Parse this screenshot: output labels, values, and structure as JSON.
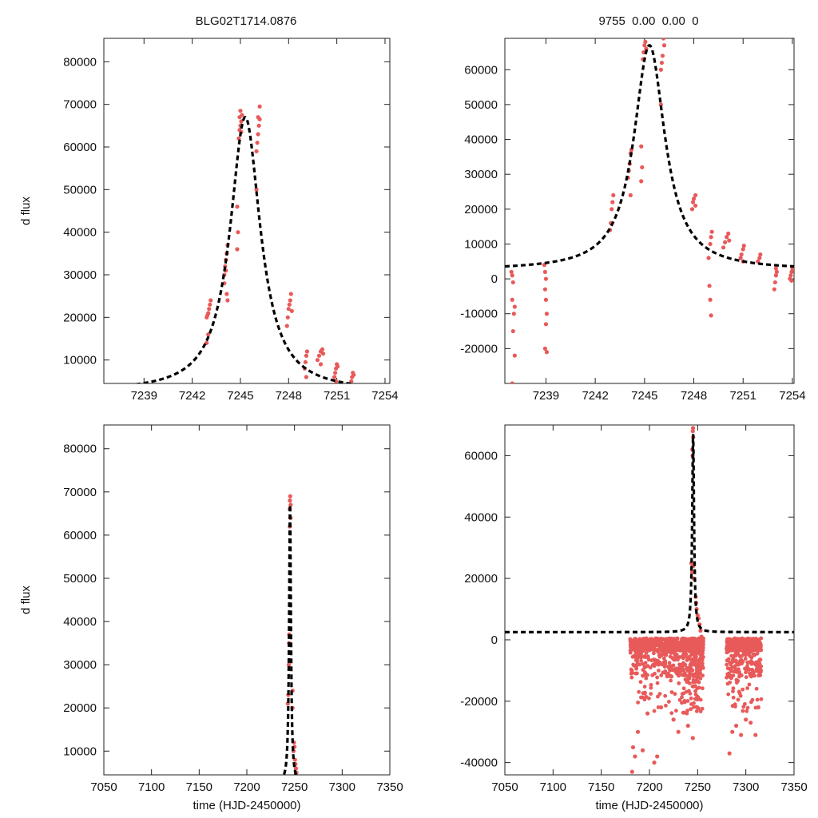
{
  "header": {
    "left_title": "BLG02T1714.0876",
    "right_title": "9755  0.00  0.00  0"
  },
  "chart_data": [
    {
      "type": "scatter",
      "panel": "top-left",
      "title": "",
      "xlabel": "",
      "ylabel": "d flux",
      "xlim": [
        7236.5,
        7254.3
      ],
      "ylim": [
        4500,
        85500
      ],
      "x_ticks": [
        7239,
        7242,
        7245,
        7248,
        7251,
        7254
      ],
      "y_ticks": [
        10000,
        20000,
        30000,
        40000,
        50000,
        60000,
        70000,
        80000
      ],
      "model": {
        "t0": 7245.3,
        "peak": 67000,
        "base": 2500,
        "width": 1.15
      },
      "series": [
        {
          "color": "#e85a5a",
          "points": [
            [
              7242.9,
              20000
            ],
            [
              7243.0,
              21000
            ],
            [
              7243.05,
              22000
            ],
            [
              7243.1,
              23000
            ],
            [
              7243.15,
              24000
            ],
            [
              7242.95,
              20500
            ],
            [
              7243.0,
              16000
            ],
            [
              7242.9,
              14000
            ],
            [
              7244.0,
              30000
            ],
            [
              7244.05,
              32000
            ],
            [
              7244.1,
              33500
            ],
            [
              7244.15,
              35000
            ],
            [
              7244.2,
              37000
            ],
            [
              7244.1,
              31000
            ],
            [
              7244.0,
              28000
            ],
            [
              7244.2,
              24000
            ],
            [
              7244.15,
              25500
            ],
            [
              7244.8,
              36000
            ],
            [
              7244.85,
              40000
            ],
            [
              7244.8,
              46000
            ],
            [
              7244.9,
              62000
            ],
            [
              7244.95,
              64000
            ],
            [
              7245.0,
              65000
            ],
            [
              7245.05,
              66000
            ],
            [
              7245.1,
              67500
            ],
            [
              7245.0,
              68500
            ],
            [
              7244.95,
              67000
            ],
            [
              7245.05,
              63500
            ],
            [
              7246.0,
              50000
            ],
            [
              7246.0,
              59000
            ],
            [
              7246.05,
              61000
            ],
            [
              7246.1,
              63000
            ],
            [
              7246.15,
              65000
            ],
            [
              7246.2,
              66500
            ],
            [
              7246.2,
              69500
            ],
            [
              7246.1,
              67000
            ],
            [
              7247.9,
              18000
            ],
            [
              7247.95,
              20000
            ],
            [
              7248.0,
              22000
            ],
            [
              7248.05,
              23000
            ],
            [
              7248.1,
              24000
            ],
            [
              7248.15,
              25500
            ],
            [
              7248.2,
              21500
            ],
            [
              7249.0,
              8000
            ],
            [
              7249.05,
              9500
            ],
            [
              7249.1,
              11000
            ],
            [
              7249.15,
              12000
            ],
            [
              7249.1,
              6000
            ],
            [
              7249.8,
              10000
            ],
            [
              7249.9,
              11000
            ],
            [
              7250.0,
              12000
            ],
            [
              7250.1,
              12500
            ],
            [
              7250.15,
              11500
            ],
            [
              7250.0,
              9000
            ],
            [
              7250.85,
              6000
            ],
            [
              7250.9,
              7000
            ],
            [
              7250.95,
              8000
            ],
            [
              7251.0,
              9000
            ],
            [
              7251.05,
              8500
            ],
            [
              7250.95,
              5000
            ],
            [
              7251.9,
              5000
            ],
            [
              7251.95,
              6000
            ],
            [
              7252.0,
              7000
            ],
            [
              7252.05,
              6500
            ]
          ]
        }
      ]
    },
    {
      "type": "scatter",
      "panel": "top-right",
      "title": "",
      "xlabel": "",
      "ylabel": "",
      "xlim": [
        7236.5,
        7254.1
      ],
      "ylim": [
        -30000,
        69000
      ],
      "x_ticks": [
        7239,
        7242,
        7245,
        7248,
        7251,
        7254
      ],
      "y_ticks": [
        -20000,
        -10000,
        0,
        10000,
        20000,
        30000,
        40000,
        50000,
        60000
      ],
      "model": {
        "t0": 7245.3,
        "peak": 67000,
        "base": 2500,
        "width": 1.15
      },
      "series": [
        {
          "color": "#e85a5a",
          "points": [
            [
              7236.9,
              2000
            ],
            [
              7236.95,
              1000
            ],
            [
              7237.0,
              -1000
            ],
            [
              7236.95,
              -6000
            ],
            [
              7237.05,
              -10000
            ],
            [
              7237.0,
              -15000
            ],
            [
              7237.1,
              -22000
            ],
            [
              7236.95,
              -30000
            ],
            [
              7237.1,
              -8000
            ],
            [
              7238.9,
              4000
            ],
            [
              7238.95,
              2000
            ],
            [
              7239.0,
              0
            ],
            [
              7238.95,
              -3000
            ],
            [
              7239.0,
              -6000
            ],
            [
              7239.05,
              -10000
            ],
            [
              7239.0,
              -13000
            ],
            [
              7238.95,
              -20000
            ],
            [
              7239.05,
              -21000
            ],
            [
              7242.9,
              14000
            ],
            [
              7242.95,
              16000
            ],
            [
              7243.0,
              20000
            ],
            [
              7243.05,
              22000
            ],
            [
              7243.1,
              24000
            ],
            [
              7244.0,
              29000
            ],
            [
              7244.05,
              31000
            ],
            [
              7244.1,
              33000
            ],
            [
              7244.15,
              36000
            ],
            [
              7244.2,
              37000
            ],
            [
              7244.15,
              24000
            ],
            [
              7244.8,
              28000
            ],
            [
              7244.85,
              32000
            ],
            [
              7244.8,
              38000
            ],
            [
              7244.9,
              63000
            ],
            [
              7244.95,
              65000
            ],
            [
              7245.0,
              67000
            ],
            [
              7245.05,
              68000
            ],
            [
              7245.1,
              66000
            ],
            [
              7246.0,
              50000
            ],
            [
              7246.0,
              60000
            ],
            [
              7246.05,
              62000
            ],
            [
              7246.1,
              64000
            ],
            [
              7246.2,
              67000
            ],
            [
              7246.15,
              69000
            ],
            [
              7247.9,
              20000
            ],
            [
              7247.95,
              22000
            ],
            [
              7248.0,
              23000
            ],
            [
              7248.1,
              24000
            ],
            [
              7248.1,
              21000
            ],
            [
              7248.9,
              6000
            ],
            [
              7248.95,
              -2000
            ],
            [
              7249.0,
              -6000
            ],
            [
              7249.05,
              -10500
            ],
            [
              7249.0,
              10000
            ],
            [
              7249.05,
              12000
            ],
            [
              7249.1,
              13500
            ],
            [
              7249.8,
              9000
            ],
            [
              7249.9,
              10500
            ],
            [
              7250.0,
              12000
            ],
            [
              7250.1,
              13000
            ],
            [
              7250.15,
              11000
            ],
            [
              7250.85,
              6000
            ],
            [
              7250.9,
              7000
            ],
            [
              7251.0,
              8500
            ],
            [
              7251.05,
              9500
            ],
            [
              7251.0,
              5000
            ],
            [
              7251.9,
              5000
            ],
            [
              7252.0,
              6000
            ],
            [
              7252.05,
              7000
            ],
            [
              7252.9,
              -3000
            ],
            [
              7252.95,
              -1000
            ],
            [
              7253.0,
              1000
            ],
            [
              7253.05,
              2000
            ],
            [
              7253.0,
              3000
            ],
            [
              7253.85,
              0
            ],
            [
              7253.9,
              1000
            ],
            [
              7253.95,
              2000
            ],
            [
              7254.0,
              3000
            ],
            [
              7253.95,
              -500
            ]
          ]
        }
      ]
    },
    {
      "type": "scatter",
      "panel": "bottom-left",
      "title": "",
      "xlabel": "time (HJD-2450000)",
      "ylabel": "d flux",
      "xlim": [
        7050,
        7350
      ],
      "ylim": [
        4500,
        85500
      ],
      "x_ticks": [
        7050,
        7100,
        7150,
        7200,
        7250,
        7300,
        7350
      ],
      "y_ticks": [
        10000,
        20000,
        30000,
        40000,
        50000,
        60000,
        70000,
        80000
      ],
      "model": {
        "t0": 7245.3,
        "peak": 67000,
        "base": 2500,
        "width": 1.15
      },
      "series": [
        {
          "color": "#e85a5a",
          "points": [
            [
              7243,
              21000
            ],
            [
              7243.5,
              23000
            ],
            [
              7244,
              30000
            ],
            [
              7244.3,
              35000
            ],
            [
              7244.5,
              37000
            ],
            [
              7245,
              62000
            ],
            [
              7245,
              66000
            ],
            [
              7245.2,
              68000
            ],
            [
              7245.5,
              69000
            ],
            [
              7246,
              64000
            ],
            [
              7246,
              67000
            ],
            [
              7248,
              20000
            ],
            [
              7248,
              24000
            ],
            [
              7249,
              10000
            ],
            [
              7249.5,
              12000
            ],
            [
              7250,
              11000
            ],
            [
              7250.5,
              8000
            ],
            [
              7251,
              7000
            ],
            [
              7251.5,
              6000
            ],
            [
              7252,
              5000
            ]
          ]
        }
      ]
    },
    {
      "type": "scatter",
      "panel": "bottom-right",
      "title": "",
      "xlabel": "time (HJD-2450000)",
      "ylabel": "",
      "xlim": [
        7050,
        7350
      ],
      "ylim": [
        -44000,
        70000
      ],
      "x_ticks": [
        7050,
        7100,
        7150,
        7200,
        7250,
        7300,
        7350
      ],
      "y_ticks": [
        -40000,
        -20000,
        0,
        20000,
        40000,
        60000
      ],
      "model": {
        "t0": 7245.3,
        "peak": 67000,
        "base": 2500,
        "width": 1.15
      },
      "noise_bands": [
        [
          7180,
          7232
        ],
        [
          7233,
          7256
        ],
        [
          7280,
          7316
        ]
      ],
      "series": [
        {
          "color": "#e85a5a",
          "points": [
            [
              7245,
              68000
            ],
            [
              7245.2,
              69000
            ],
            [
              7245.4,
              66000
            ],
            [
              7244.5,
              62000
            ],
            [
              7244.8,
              60000
            ],
            [
              7245.1,
              24000
            ],
            [
              7244.4,
              22000
            ],
            [
              7245.6,
              20000
            ],
            [
              7243.5,
              25000
            ],
            [
              7248,
              14000
            ],
            [
              7248.5,
              12000
            ],
            [
              7249,
              10000
            ],
            [
              7250,
              8000
            ],
            [
              7251,
              7000
            ],
            [
              7252,
              5000
            ],
            [
              7253,
              3000
            ],
            [
              7254,
              1000
            ],
            [
              7255,
              -1000
            ],
            [
              7182,
              -43000
            ],
            [
              7183,
              -35000
            ],
            [
              7185,
              -38000
            ],
            [
              7188,
              -30000
            ],
            [
              7193,
              -36000
            ],
            [
              7198,
              -24000
            ],
            [
              7205,
              -40000
            ],
            [
              7208,
              -38000
            ],
            [
              7212,
              -22000
            ],
            [
              7225,
              -26000
            ],
            [
              7230,
              -30000
            ],
            [
              7237,
              -20000
            ],
            [
              7240,
              -28000
            ],
            [
              7245,
              -32000
            ],
            [
              7250,
              -8000
            ],
            [
              7283,
              -37000
            ],
            [
              7286,
              -30000
            ],
            [
              7290,
              -28000
            ],
            [
              7295,
              -31000
            ],
            [
              7300,
              -26000
            ],
            [
              7305,
              -27000
            ],
            [
              7310,
              -31000
            ],
            [
              7313,
              -22000
            ]
          ]
        }
      ]
    }
  ]
}
